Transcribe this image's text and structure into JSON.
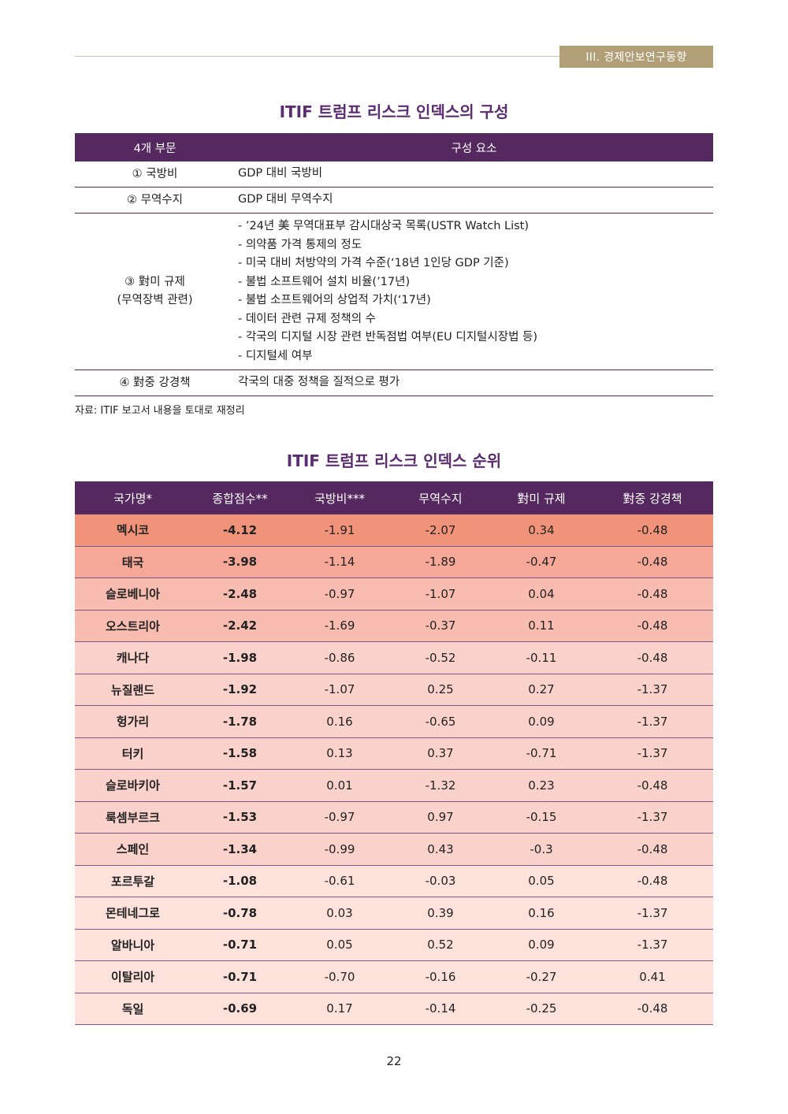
{
  "header": {
    "section_tag": "III. 경제안보연구동향"
  },
  "table1": {
    "title": "ITIF 트럼프 리스크 인덱스의 구성",
    "col_headers": [
      "4개 부문",
      "구성 요소"
    ],
    "rows": [
      {
        "category": [
          "① 국방비"
        ],
        "components": [
          "GDP 대비 국방비"
        ]
      },
      {
        "category": [
          "② 무역수지"
        ],
        "components": [
          "GDP 대비 무역수지"
        ]
      },
      {
        "category": [
          "③ 對미 규제",
          "(무역장벽 관련)"
        ],
        "components": [
          "- ’24년 美 무역대표부 감시대상국 목록(USTR Watch List)",
          "- 의약품 가격 통제의 정도",
          "- 미국 대비 처방약의 가격 수준(‘18년 1인당 GDP 기준)",
          "- 불법 소프트웨어 설치 비율(’17년)",
          "- 불법 소프트웨어의 상업적 가치(‘17년)",
          "- 데이터 관련 규제 정책의 수",
          "- 각국의 디지털 시장 관련 반독점법 여부(EU 디지털시장법 등)",
          "- 디지털세 여부"
        ]
      },
      {
        "category": [
          "④ 對중 강경책"
        ],
        "components": [
          "각국의 대중 정책을 질적으로 평가"
        ]
      }
    ],
    "source": "자료: ITIF 보고서 내용을 토대로 재정리"
  },
  "table2": {
    "title": "ITIF 트럼프 리스크 인덱스 순위",
    "col_headers": [
      "국가명*",
      "종합점수**",
      "국방비***",
      "무역수지",
      "對미 규제",
      "對중 강경책"
    ],
    "row_colors": [
      "#f1937a",
      "#f5a898",
      "#f8bcb0",
      "#f8bcb0",
      "#fad2cb",
      "#fad2cb",
      "#fad2cb",
      "#fad2cb",
      "#fad2cb",
      "#fad2cb",
      "#fad2cb",
      "#fde2dc",
      "#fde2dc",
      "#fde2dc",
      "#fde2dc",
      "#fde2dc"
    ],
    "rows": [
      [
        "멕시코",
        "-4.12",
        "-1.91",
        "-2.07",
        "0.34",
        "-0.48"
      ],
      [
        "태국",
        "-3.98",
        "-1.14",
        "-1.89",
        "-0.47",
        "-0.48"
      ],
      [
        "슬로베니아",
        "-2.48",
        "-0.97",
        "-1.07",
        "0.04",
        "-0.48"
      ],
      [
        "오스트리아",
        "-2.42",
        "-1.69",
        "-0.37",
        "0.11",
        "-0.48"
      ],
      [
        "캐나다",
        "-1.98",
        "-0.86",
        "-0.52",
        "-0.11",
        "-0.48"
      ],
      [
        "뉴질랜드",
        "-1.92",
        "-1.07",
        "0.25",
        "0.27",
        "-1.37"
      ],
      [
        "헝가리",
        "-1.78",
        "0.16",
        "-0.65",
        "0.09",
        "-1.37"
      ],
      [
        "터키",
        "-1.58",
        "0.13",
        "0.37",
        "-0.71",
        "-1.37"
      ],
      [
        "슬로바키아",
        "-1.57",
        "0.01",
        "-1.32",
        "0.23",
        "-0.48"
      ],
      [
        "룩셈부르크",
        "-1.53",
        "-0.97",
        "0.97",
        "-0.15",
        "-1.37"
      ],
      [
        "스페인",
        "-1.34",
        "-0.99",
        "0.43",
        "-0.3",
        "-0.48"
      ],
      [
        "포르투갈",
        "-1.08",
        "-0.61",
        "-0.03",
        "0.05",
        "-0.48"
      ],
      [
        "몬테네그로",
        "-0.78",
        "0.03",
        "0.39",
        "0.16",
        "-1.37"
      ],
      [
        "알바니아",
        "-0.71",
        "0.05",
        "0.52",
        "0.09",
        "-1.37"
      ],
      [
        "이탈리아",
        "-0.71",
        "-0.70",
        "-0.16",
        "-0.27",
        "0.41"
      ],
      [
        "독일",
        "-0.69",
        "0.17",
        "-0.14",
        "-0.25",
        "-0.48"
      ]
    ]
  },
  "footer": {
    "page_number": "22"
  }
}
